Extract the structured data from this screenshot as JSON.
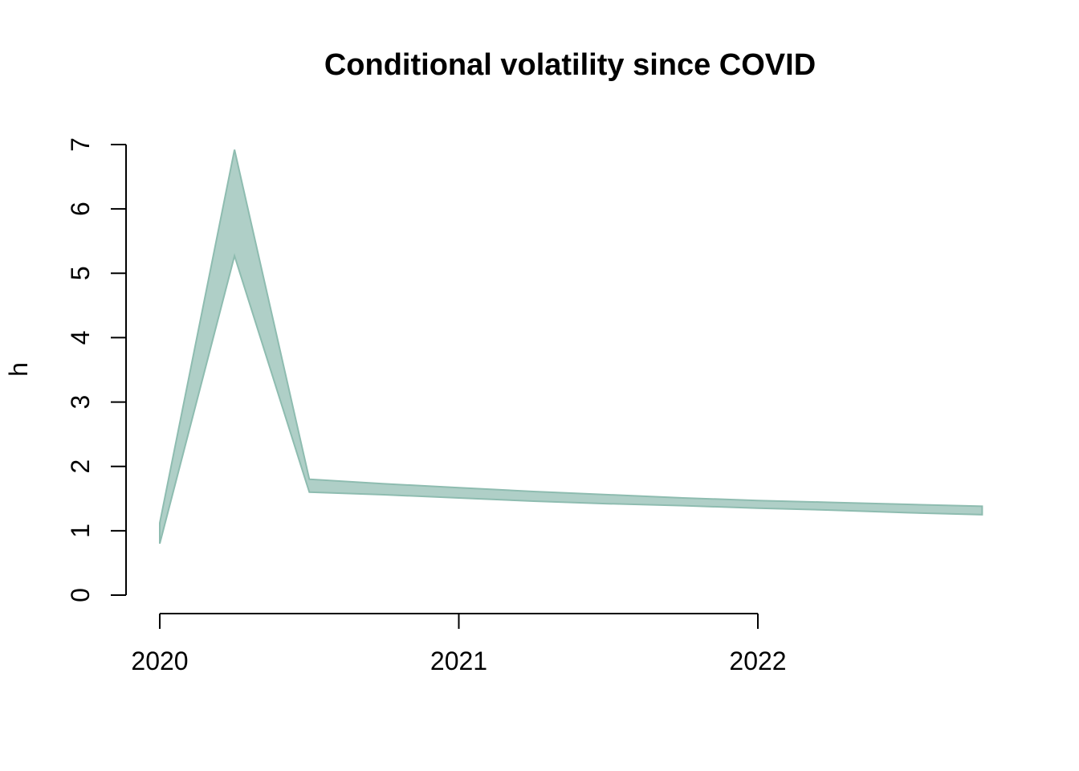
{
  "chart_data": {
    "type": "area",
    "title": "Conditional volatility since COVID",
    "xlabel": "",
    "ylabel": "h",
    "ylim": [
      0,
      7
    ],
    "xlim": [
      2020.0,
      2022.75
    ],
    "y_ticks": [
      0,
      1,
      2,
      3,
      4,
      5,
      6,
      7
    ],
    "x_ticks": [
      2020,
      2021,
      2022
    ],
    "x_tick_labels": [
      "2020",
      "2021",
      "2022"
    ],
    "grid": false,
    "legend": "none",
    "fill_color": "#AFCFC7",
    "stroke_color": "#8EBCB0",
    "band": {
      "x": [
        2020.0,
        2020.25,
        2020.5,
        2020.75,
        2021.0,
        2021.25,
        2021.5,
        2021.75,
        2022.0,
        2022.25,
        2022.5,
        2022.75
      ],
      "lower": [
        0.8,
        5.27,
        1.6,
        1.56,
        1.51,
        1.46,
        1.42,
        1.39,
        1.35,
        1.32,
        1.28,
        1.25
      ],
      "upper": [
        1.12,
        6.92,
        1.8,
        1.73,
        1.67,
        1.61,
        1.56,
        1.51,
        1.47,
        1.44,
        1.41,
        1.38
      ]
    }
  }
}
